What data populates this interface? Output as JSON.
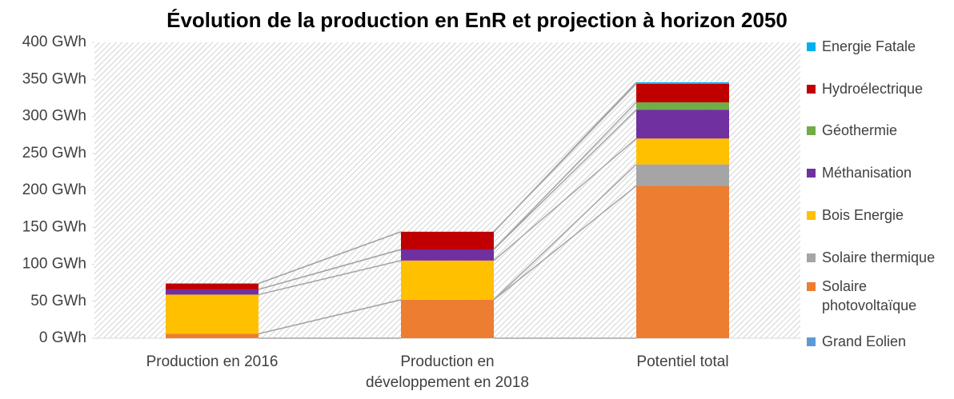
{
  "chart_data": {
    "type": "stacked_bar",
    "title": "Évolution de la production en EnR et projection à horizon 2050",
    "categories": [
      "Production en 2016",
      "Production en développement en 2018",
      "Potentiel total"
    ],
    "series": [
      {
        "name": "Grand Eolien",
        "color": "#5b9bd5",
        "values": [
          0,
          0,
          0
        ]
      },
      {
        "name": "Solaire photovoltaïque",
        "color": "#ed7d31",
        "values": [
          6,
          52,
          206
        ]
      },
      {
        "name": "Solaire thermique",
        "color": "#a5a5a5",
        "values": [
          0,
          0,
          29
        ]
      },
      {
        "name": "Bois Energie",
        "color": "#ffc000",
        "values": [
          53,
          53,
          35
        ]
      },
      {
        "name": "Méthanisation",
        "color": "#7030a0",
        "values": [
          7,
          15,
          39
        ]
      },
      {
        "name": "Géothermie",
        "color": "#70ad47",
        "values": [
          0,
          0,
          10
        ]
      },
      {
        "name": "Hydroélectrique",
        "color": "#c00000",
        "values": [
          8,
          24,
          25
        ]
      },
      {
        "name": "Energie Fatale",
        "color": "#00b0f0",
        "values": [
          0,
          0,
          2
        ]
      }
    ],
    "ylim": [
      0,
      400
    ],
    "yticks": [
      {
        "value": 0,
        "label": "0 GWh"
      },
      {
        "value": 50,
        "label": "50 GWh"
      },
      {
        "value": 100,
        "label": "100 GWh"
      },
      {
        "value": 150,
        "label": "150 GWh"
      },
      {
        "value": 200,
        "label": "200 GWh"
      },
      {
        "value": 250,
        "label": "250 GWh"
      },
      {
        "value": 300,
        "label": "300 GWh"
      },
      {
        "value": 350,
        "label": "350 GWh"
      },
      {
        "value": 400,
        "label": "400 GWh"
      }
    ],
    "legend": "right"
  }
}
